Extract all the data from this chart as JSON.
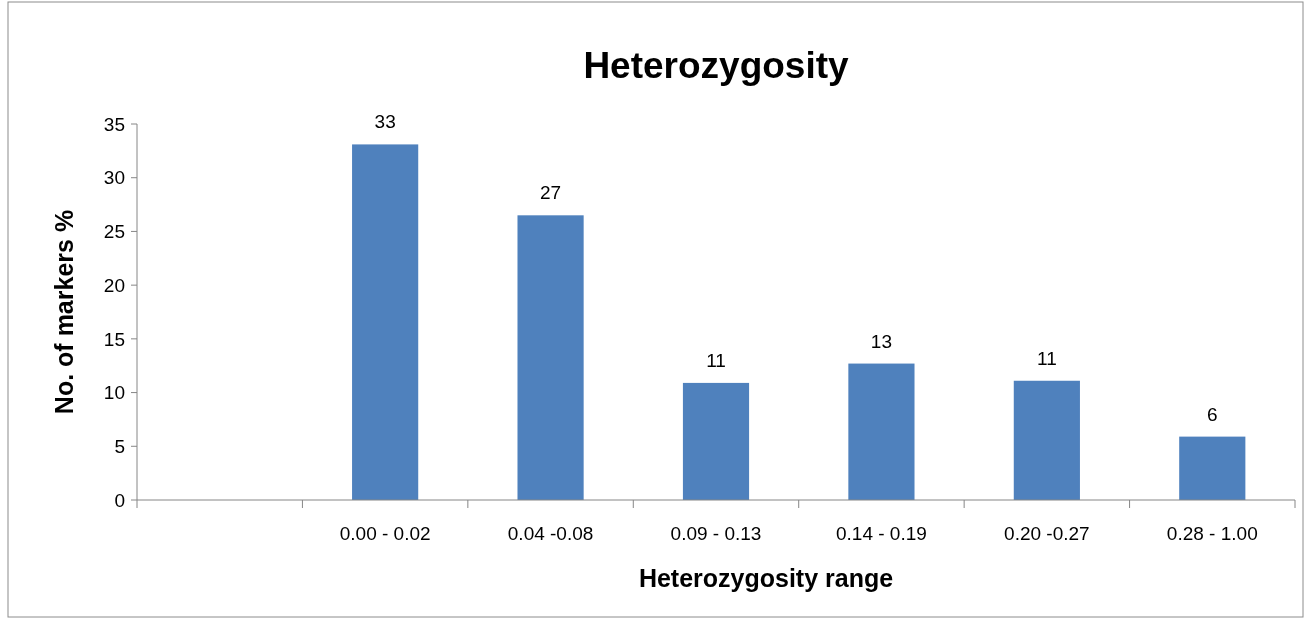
{
  "chart_data": {
    "type": "bar",
    "title": "Heterozygosity",
    "xlabel": "Heterozygosity range",
    "ylabel": "No. of markers %",
    "categories": [
      null,
      "0.00 - 0.02",
      "0.04 -0.08",
      "0.09 - 0.13",
      "0.14 - 0.19",
      "0.20 -0.27",
      "0.28 - 1.00"
    ],
    "values": [
      null,
      33.1,
      26.5,
      10.9,
      12.7,
      11.1,
      5.9
    ],
    "value_labels": [
      null,
      "33",
      "27",
      "11",
      "13",
      "11",
      "6"
    ],
    "color": "#4f81bd",
    "ylim": [
      0,
      35
    ],
    "yticks": [
      0,
      5,
      10,
      15,
      20,
      25,
      30,
      35
    ],
    "grid": false
  }
}
